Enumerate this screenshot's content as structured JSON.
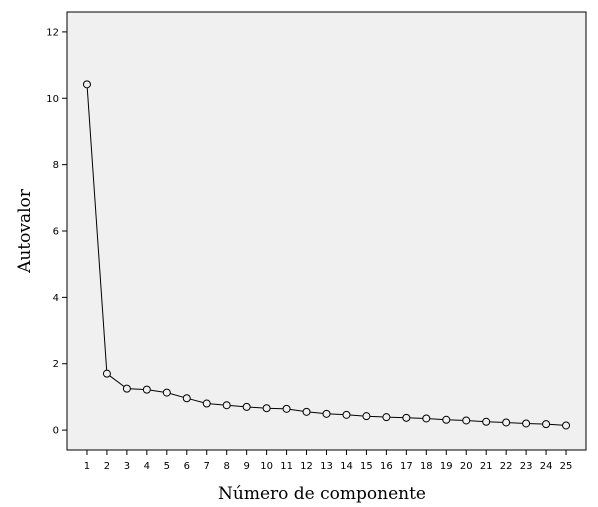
{
  "chart_data": {
    "type": "line",
    "xlabel": "Número de componente",
    "ylabel": "Autovalor",
    "xlim": [
      0,
      26
    ],
    "ylim": [
      -0.6,
      12.6
    ],
    "yticks": [
      0,
      2,
      4,
      6,
      8,
      10,
      12
    ],
    "categories": [
      1,
      2,
      3,
      4,
      5,
      6,
      7,
      8,
      9,
      10,
      11,
      12,
      13,
      14,
      15,
      16,
      17,
      18,
      19,
      20,
      21,
      22,
      23,
      24,
      25
    ],
    "series": [
      {
        "values": [
          10.42,
          1.7,
          1.25,
          1.22,
          1.13,
          0.96,
          0.8,
          0.75,
          0.7,
          0.66,
          0.64,
          0.55,
          0.49,
          0.46,
          0.42,
          0.39,
          0.37,
          0.35,
          0.31,
          0.29,
          0.25,
          0.23,
          0.2,
          0.18,
          0.14
        ]
      }
    ],
    "marker": "circle",
    "grid": false,
    "background": "#f0f0f0",
    "line_color": "#000000"
  }
}
